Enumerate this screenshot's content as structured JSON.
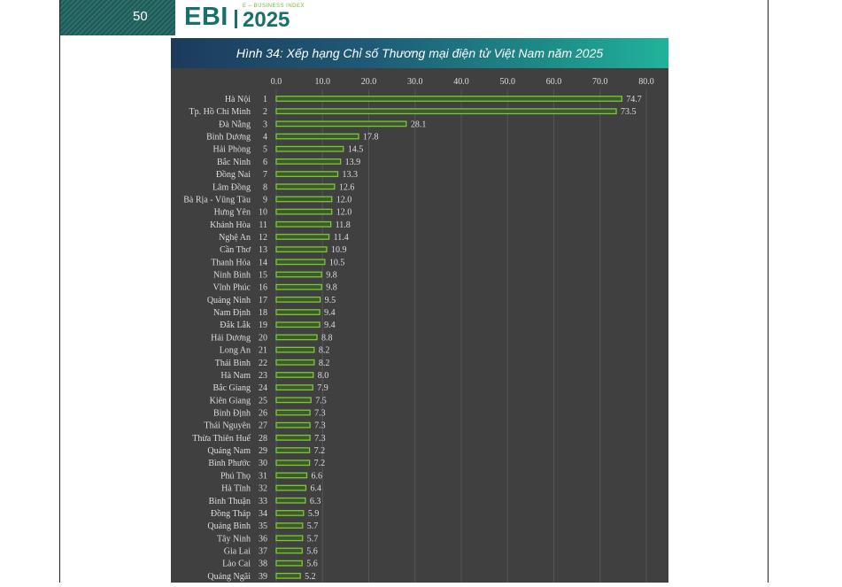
{
  "page": {
    "number": "50"
  },
  "logo": {
    "brand": "EBI",
    "subtitle": "E – BUSINESS INDEX",
    "year": "2025"
  },
  "figure": {
    "title": "Hình 34: Xếp hạng Chỉ số Thương mại điện tử Việt Nam năm 2025"
  },
  "colors": {
    "bar_stroke": "#7cc63a",
    "bar_fill": "#3c5a2a",
    "chart_bg": "#404040",
    "grid": "#555555",
    "text": "#dddddd",
    "brand": "#17706c"
  },
  "chart_data": {
    "type": "bar",
    "orientation": "horizontal",
    "title": "Hình 34: Xếp hạng Chỉ số Thương mại điện tử Việt Nam năm 2025",
    "xlabel": "",
    "ylabel": "",
    "xlim": [
      0,
      80
    ],
    "xticks": [
      "0.0",
      "10.0",
      "20.0",
      "30.0",
      "40.0",
      "50.0",
      "60.0",
      "70.0",
      "80.0"
    ],
    "grid": true,
    "categories": [
      "Hà Nội",
      "Tp. Hồ Chí Minh",
      "Đà Nẵng",
      "Bình Dương",
      "Hải Phòng",
      "Bắc Ninh",
      "Đồng Nai",
      "Lâm Đồng",
      "Bà Rịa - Vũng Tàu",
      "Hưng Yên",
      "Khánh Hòa",
      "Nghệ An",
      "Cần Thơ",
      "Thanh Hóa",
      "Ninh Bình",
      "Vĩnh Phúc",
      "Quảng Ninh",
      "Nam Định",
      "Đắk Lắk",
      "Hải Dương",
      "Long An",
      "Thái Bình",
      "Hà Nam",
      "Bắc Giang",
      "Kiên Giang",
      "Bình Định",
      "Thái Nguyên",
      "Thừa Thiên Huế",
      "Quảng Nam",
      "Bình Phước",
      "Phú Thọ",
      "Hà Tĩnh",
      "Bình Thuận",
      "Đồng Tháp",
      "Quảng Bình",
      "Tây Ninh",
      "Gia Lai",
      "Lào Cai",
      "Quảng Ngãi"
    ],
    "ranks": [
      "1",
      "2",
      "3",
      "4",
      "5",
      "6",
      "7",
      "8",
      "9",
      "10",
      "11",
      "12",
      "13",
      "14",
      "15",
      "16",
      "17",
      "18",
      "19",
      "20",
      "21",
      "22",
      "23",
      "24",
      "25",
      "26",
      "27",
      "28",
      "29",
      "30",
      "31",
      "32",
      "33",
      "34",
      "35",
      "36",
      "37",
      "38",
      "39"
    ],
    "values": [
      74.7,
      73.5,
      28.1,
      17.8,
      14.5,
      13.9,
      13.3,
      12.6,
      12.0,
      12.0,
      11.8,
      11.4,
      10.9,
      10.5,
      9.8,
      9.8,
      9.5,
      9.4,
      9.4,
      8.8,
      8.2,
      8.2,
      8.0,
      7.9,
      7.5,
      7.3,
      7.3,
      7.3,
      7.2,
      7.2,
      6.6,
      6.4,
      6.3,
      5.9,
      5.7,
      5.7,
      5.6,
      5.6,
      5.2
    ],
    "value_labels": [
      "74.7",
      "73.5",
      "28.1",
      "17.8",
      "14.5",
      "13.9",
      "13.3",
      "12.6",
      "12.0",
      "12.0",
      "11.8",
      "11.4",
      "10.9",
      "10.5",
      "9.8",
      "9.8",
      "9.5",
      "9.4",
      "9.4",
      "8.8",
      "8.2",
      "8.2",
      "8.0",
      "7.9",
      "7.5",
      "7.3",
      "7.3",
      "7.3",
      "7.2",
      "7.2",
      "6.6",
      "6.4",
      "6.3",
      "5.9",
      "5.7",
      "5.7",
      "5.6",
      "5.6",
      "5.2"
    ]
  }
}
